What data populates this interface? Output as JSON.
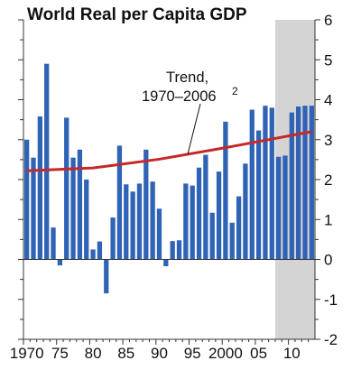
{
  "chart_data": {
    "type": "bar",
    "title": "World Real per Capita GDP",
    "xlabel": "",
    "ylabel": "",
    "ylim": [
      -2,
      6
    ],
    "y_ticks": [
      -2,
      -1,
      0,
      1,
      2,
      3,
      4,
      5,
      6
    ],
    "x_tick_labels": [
      "1970",
      "75",
      "80",
      "85",
      "90",
      "95",
      "2000",
      "05",
      "10"
    ],
    "x_tick_years": [
      1970,
      1975,
      1980,
      1985,
      1990,
      1995,
      2000,
      2005,
      2010
    ],
    "years": [
      1970,
      1971,
      1972,
      1973,
      1974,
      1975,
      1976,
      1977,
      1978,
      1979,
      1980,
      1981,
      1982,
      1983,
      1984,
      1985,
      1986,
      1987,
      1988,
      1989,
      1990,
      1991,
      1992,
      1993,
      1994,
      1995,
      1996,
      1997,
      1998,
      1999,
      2000,
      2001,
      2002,
      2003,
      2004,
      2005,
      2006,
      2007,
      2008,
      2009,
      2010,
      2011,
      2012,
      2013
    ],
    "series": [
      {
        "type": "bar",
        "color": "#2f63b5",
        "values": [
          3.0,
          2.55,
          3.58,
          4.9,
          0.8,
          -0.15,
          3.55,
          2.55,
          2.75,
          2.0,
          0.25,
          0.45,
          -0.85,
          1.05,
          2.85,
          1.88,
          1.7,
          1.9,
          2.75,
          1.95,
          1.27,
          -0.17,
          0.46,
          0.48,
          1.9,
          1.85,
          2.3,
          2.62,
          1.17,
          2.2,
          3.45,
          0.92,
          1.58,
          2.4,
          3.75,
          3.23,
          3.85,
          3.8,
          2.57,
          2.6,
          3.68,
          3.83,
          3.85,
          3.85
        ]
      },
      {
        "type": "line",
        "color": "#c62828",
        "x": [
          1970,
          1980,
          1990,
          2000,
          2013
        ],
        "values": [
          2.22,
          2.29,
          2.51,
          2.8,
          3.2
        ]
      }
    ],
    "shaded_region": {
      "from": 2007.5,
      "to": 2013.5,
      "color": "#d4d4d4"
    },
    "annotation": {
      "line1": "Trend,",
      "line2": "1970–2006",
      "sup": "2"
    }
  }
}
